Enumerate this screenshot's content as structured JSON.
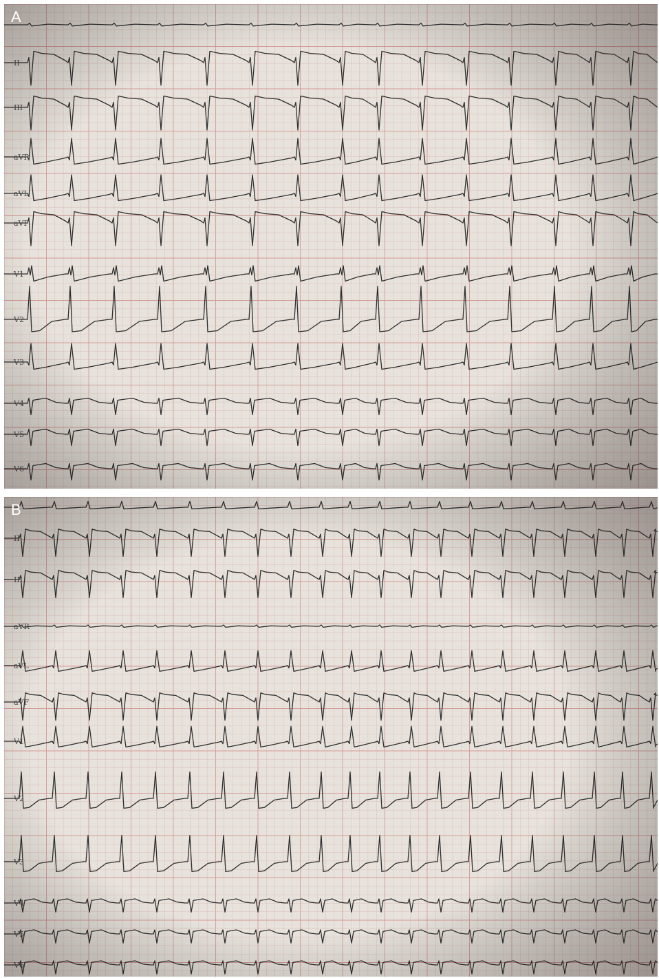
{
  "panels": [
    {
      "id": "A",
      "label": "A",
      "leads": [
        {
          "name": "",
          "morph": "flat"
        },
        {
          "name": "II",
          "morph": "neg"
        },
        {
          "name": "III",
          "morph": "neg"
        },
        {
          "name": "aVR",
          "morph": "pos"
        },
        {
          "name": "aVL",
          "morph": "pos"
        },
        {
          "name": "aVF",
          "morph": "neg"
        },
        {
          "name": "V1",
          "morph": "rsr"
        },
        {
          "name": "V2",
          "morph": "tallpos"
        },
        {
          "name": "V3",
          "morph": "pos"
        },
        {
          "name": "V4",
          "morph": "small"
        },
        {
          "name": "V5",
          "morph": "small"
        },
        {
          "name": "V6",
          "morph": "small"
        }
      ]
    },
    {
      "id": "B",
      "label": "B",
      "leads": [
        {
          "name": "",
          "morph": "flatpos"
        },
        {
          "name": "II",
          "morph": "neg"
        },
        {
          "name": "III",
          "morph": "neg"
        },
        {
          "name": "aVR",
          "morph": "flat"
        },
        {
          "name": "aVL",
          "morph": "pos"
        },
        {
          "name": "aVF",
          "morph": "neg"
        },
        {
          "name": "V1",
          "morph": "pos"
        },
        {
          "name": "V2",
          "morph": "tallpos"
        },
        {
          "name": "V3",
          "morph": "tallpos"
        },
        {
          "name": "V4",
          "morph": "small"
        },
        {
          "name": "V5",
          "morph": "small"
        },
        {
          "name": "V6",
          "morph": "small"
        }
      ]
    }
  ],
  "colors": {
    "paper": "#e7e3dc",
    "grid_minor": "#dcbcb8",
    "grid_major": "#d49a96",
    "trace": "#2e2e2e",
    "label": "#ffffff"
  }
}
